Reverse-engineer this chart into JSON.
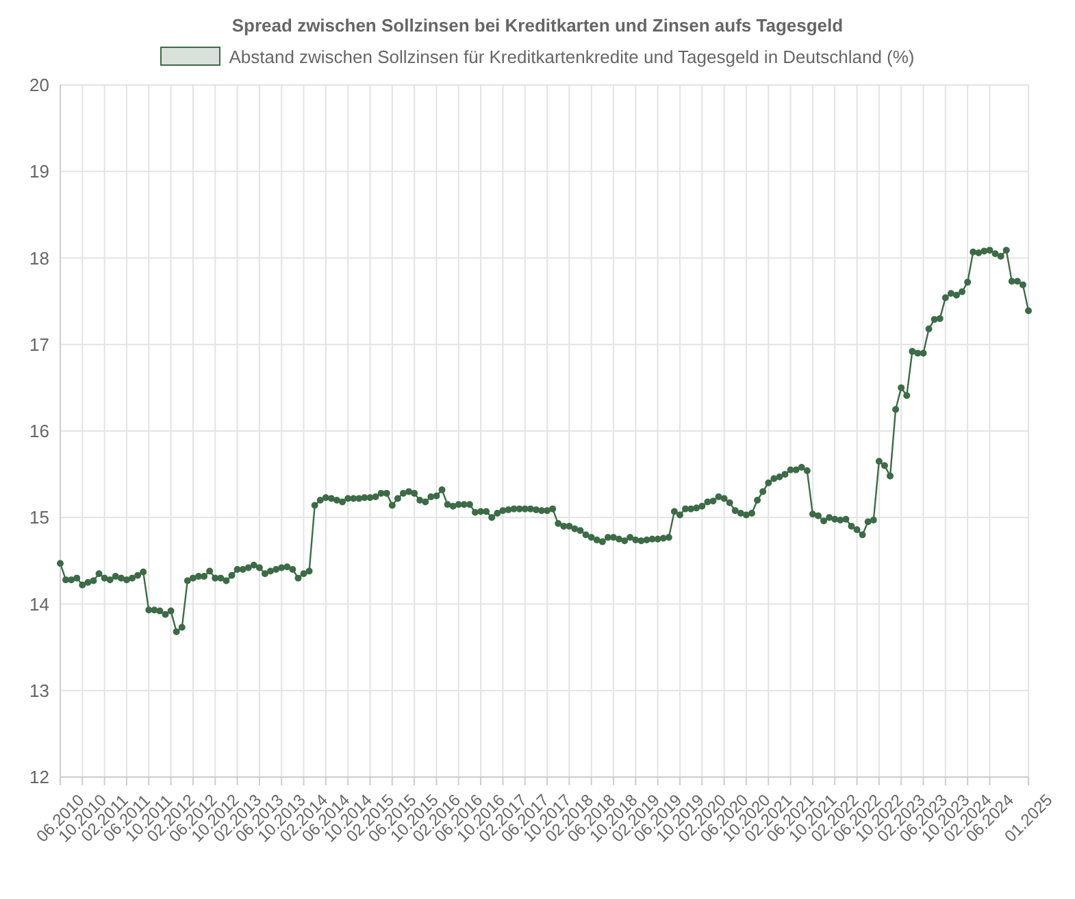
{
  "chart_data": {
    "type": "line",
    "title": "Spread zwischen Sollzinsen bei Kreditkarten und Zinsen aufs Tagesgeld",
    "categories": [
      "06.2010",
      null,
      null,
      null,
      "10.2010",
      null,
      null,
      null,
      "02.2011",
      null,
      null,
      null,
      "06.2011",
      null,
      null,
      null,
      "10.2011",
      null,
      null,
      null,
      "02.2012",
      null,
      null,
      null,
      "06.2012",
      null,
      null,
      null,
      "10.2012",
      null,
      null,
      null,
      "02.2013",
      null,
      null,
      null,
      "06.2013",
      null,
      null,
      null,
      "10.2013",
      null,
      null,
      null,
      "02.2014",
      null,
      null,
      null,
      "06.2014",
      null,
      null,
      null,
      "10.2014",
      null,
      null,
      null,
      "02.2015",
      null,
      null,
      null,
      "06.2015",
      null,
      null,
      null,
      "10.2015",
      null,
      null,
      null,
      "02.2016",
      null,
      null,
      null,
      "06.2016",
      null,
      null,
      null,
      "10.2016",
      null,
      null,
      null,
      "02.2017",
      null,
      null,
      null,
      "06.2017",
      null,
      null,
      null,
      "10.2017",
      null,
      null,
      null,
      "02.2018",
      null,
      null,
      null,
      "06.2018",
      null,
      null,
      null,
      "10.2018",
      null,
      null,
      null,
      "02.2019",
      null,
      null,
      null,
      "06.2019",
      null,
      null,
      null,
      "10.2019",
      null,
      null,
      null,
      "02.2020",
      null,
      null,
      null,
      "06.2020",
      null,
      null,
      null,
      "10.2020",
      null,
      null,
      null,
      "02.2021",
      null,
      null,
      null,
      "06.2021",
      null,
      null,
      null,
      "10.2021",
      null,
      null,
      null,
      "02.2022",
      null,
      null,
      null,
      "06.2022",
      null,
      null,
      null,
      "10.2022",
      null,
      null,
      null,
      "02.2023",
      null,
      null,
      null,
      "06.2023",
      null,
      null,
      null,
      "10.2023",
      null,
      null,
      null,
      "02.2024",
      null,
      null,
      null,
      "06.2024",
      null,
      null,
      null,
      null,
      null,
      null,
      "01.2025"
    ],
    "series": [
      {
        "name": "Abstand zwischen Sollzinsen für Kreditkartenkredite und Tagesgeld in Deutschland (%)",
        "color": "#3d6b47",
        "values": [
          14.47,
          14.28,
          14.28,
          14.3,
          14.22,
          14.25,
          14.27,
          14.35,
          14.3,
          14.28,
          14.32,
          14.3,
          14.28,
          14.3,
          14.33,
          14.37,
          13.93,
          13.93,
          13.92,
          13.88,
          13.92,
          13.68,
          13.73,
          14.27,
          14.3,
          14.32,
          14.32,
          14.38,
          14.3,
          14.3,
          14.27,
          14.33,
          14.4,
          14.4,
          14.42,
          14.45,
          14.42,
          14.35,
          14.38,
          14.4,
          14.42,
          14.43,
          14.4,
          14.3,
          14.35,
          14.38,
          15.14,
          15.2,
          15.23,
          15.22,
          15.2,
          15.18,
          15.22,
          15.22,
          15.22,
          15.23,
          15.23,
          15.24,
          15.28,
          15.28,
          15.14,
          15.22,
          15.28,
          15.3,
          15.28,
          15.2,
          15.18,
          15.24,
          15.25,
          15.32,
          15.15,
          15.13,
          15.15,
          15.15,
          15.15,
          15.06,
          15.07,
          15.07,
          15.0,
          15.05,
          15.08,
          15.09,
          15.1,
          15.1,
          15.1,
          15.1,
          15.09,
          15.08,
          15.08,
          15.1,
          14.93,
          14.9,
          14.9,
          14.87,
          14.85,
          14.8,
          14.77,
          14.74,
          14.72,
          14.77,
          14.77,
          14.75,
          14.73,
          14.77,
          14.74,
          14.73,
          14.74,
          14.75,
          14.75,
          14.76,
          14.77,
          15.07,
          15.03,
          15.1,
          15.1,
          15.11,
          15.13,
          15.18,
          15.19,
          15.24,
          15.22,
          15.17,
          15.08,
          15.05,
          15.03,
          15.05,
          15.2,
          15.3,
          15.4,
          15.45,
          15.47,
          15.5,
          15.55,
          15.55,
          15.58,
          15.54,
          15.04,
          15.02,
          14.96,
          15.0,
          14.98,
          14.97,
          14.98,
          14.9,
          14.86,
          14.8,
          14.95,
          14.97,
          15.65,
          15.6,
          15.48,
          16.25,
          16.5,
          16.41,
          16.92,
          16.9,
          16.9,
          17.18,
          17.29,
          17.3,
          17.54,
          17.59,
          17.57,
          17.61,
          17.72,
          18.07,
          18.06,
          18.08,
          18.09,
          18.05,
          18.02,
          18.09,
          17.73,
          17.73,
          17.69,
          17.39
        ]
      }
    ],
    "ylim": [
      12,
      20
    ],
    "yticks": [
      12,
      13,
      14,
      15,
      16,
      17,
      18,
      19,
      20
    ],
    "grid": true,
    "legend": "top",
    "marker": "circle",
    "line_style": "solid"
  }
}
